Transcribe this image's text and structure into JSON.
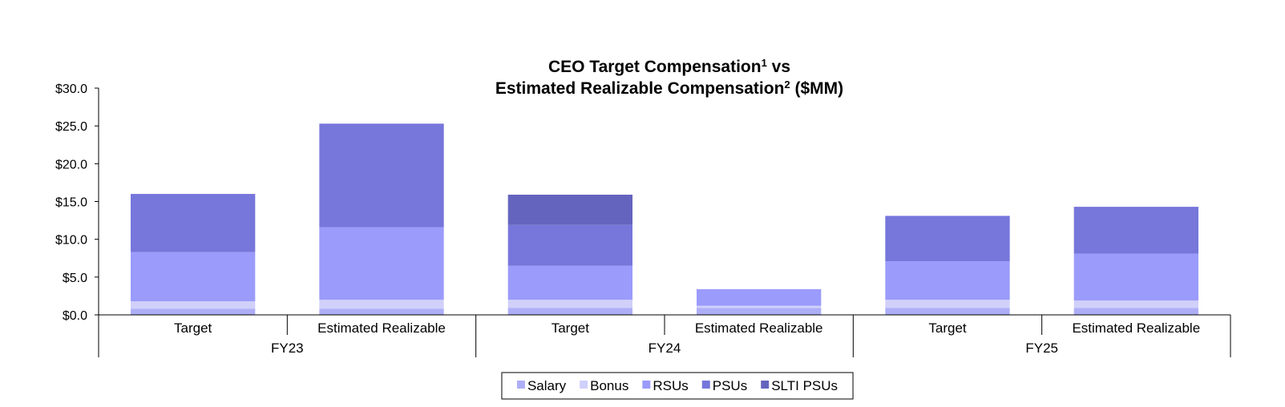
{
  "chart_data": {
    "type": "bar",
    "stacked": true,
    "title": {
      "line1": "CEO Target Compensation",
      "line1_sup": "1",
      "line1_tail": " vs",
      "line2": "Estimated Realizable Compensation",
      "line2_sup": "2",
      "line2_tail": " ($MM)"
    },
    "ylim": [
      0,
      30
    ],
    "yticks": [
      0,
      5,
      10,
      15,
      20,
      25,
      30
    ],
    "ytick_labels": [
      "$0.0",
      "$5.0",
      "$10.0",
      "$15.0",
      "$20.0",
      "$25.0",
      "$30.0"
    ],
    "categories": [
      "Target",
      "Estimated Realizable",
      "Target",
      "Estimated Realizable",
      "Target",
      "Estimated Realizable"
    ],
    "groups": [
      "FY23",
      "FY24",
      "FY25"
    ],
    "series": [
      {
        "name": "Salary",
        "color": "#aeaef7",
        "values": [
          0.8,
          0.8,
          0.9,
          0.9,
          0.9,
          0.9
        ]
      },
      {
        "name": "Bonus",
        "color": "#d0d0fa",
        "values": [
          1.0,
          1.2,
          1.1,
          0.3,
          1.1,
          1.0
        ]
      },
      {
        "name": "RSUs",
        "color": "#9b9bfb",
        "values": [
          6.5,
          9.6,
          4.5,
          2.2,
          5.1,
          6.2
        ]
      },
      {
        "name": "PSUs",
        "color": "#7676db",
        "values": [
          7.7,
          13.7,
          5.4,
          0.0,
          6.0,
          6.2
        ]
      },
      {
        "name": "SLTI PSUs",
        "color": "#6464bf",
        "values": [
          0.0,
          0.0,
          4.0,
          0.0,
          0.0,
          0.0
        ]
      }
    ],
    "legend_position": "bottom-center"
  }
}
